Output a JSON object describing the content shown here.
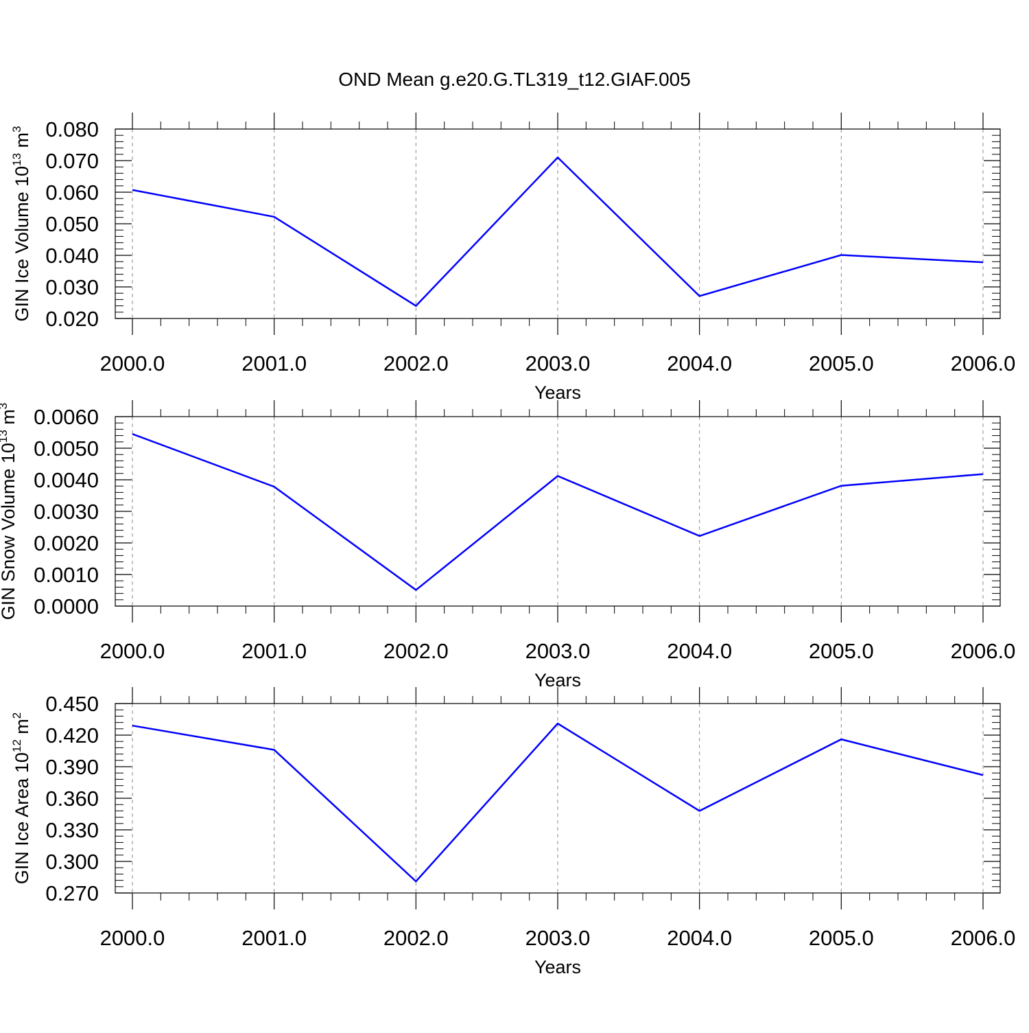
{
  "title": "OND Mean g.e20.G.TL319_t12.GIAF.005",
  "colors": {
    "series": "#0000ff",
    "axis": "#000000",
    "grid": "#888888"
  },
  "chart_data": [
    {
      "type": "line",
      "title": "OND Mean g.e20.G.TL319_t12.GIAF.005",
      "xlabel": "Years",
      "ylabel": {
        "text": "GIN Ice Volume 10",
        "exp": "13",
        "unit": " m",
        "unit_exp": "3"
      },
      "xlim": [
        2000,
        2006
      ],
      "ylim": [
        0.02,
        0.08
      ],
      "x_ticks": [
        2000,
        2001,
        2002,
        2003,
        2004,
        2005,
        2006
      ],
      "x_tick_labels": [
        "2000.0",
        "2001.0",
        "2002.0",
        "2003.0",
        "2004.0",
        "2005.0",
        "2006.0"
      ],
      "y_ticks": [
        0.02,
        0.03,
        0.04,
        0.05,
        0.06,
        0.07,
        0.08
      ],
      "y_tick_labels": [
        "0.020",
        "0.030",
        "0.040",
        "0.050",
        "0.060",
        "0.070",
        "0.080"
      ],
      "grid": "vertical dashed at major x ticks",
      "series": [
        {
          "x": [
            2000,
            2001,
            2002,
            2003,
            2004,
            2005,
            2006
          ],
          "values": [
            0.0607,
            0.0522,
            0.024,
            0.071,
            0.0271,
            0.0401,
            0.0378
          ]
        }
      ]
    },
    {
      "type": "line",
      "xlabel": "Years",
      "ylabel": {
        "text": "GIN Snow Volume 10",
        "exp": "13",
        "unit": " m",
        "unit_exp": "3"
      },
      "xlim": [
        2000,
        2006
      ],
      "ylim": [
        0.0,
        0.006
      ],
      "x_ticks": [
        2000,
        2001,
        2002,
        2003,
        2004,
        2005,
        2006
      ],
      "x_tick_labels": [
        "2000.0",
        "2001.0",
        "2002.0",
        "2003.0",
        "2004.0",
        "2005.0",
        "2006.0"
      ],
      "y_ticks": [
        0.0,
        0.001,
        0.002,
        0.003,
        0.004,
        0.005,
        0.006
      ],
      "y_tick_labels": [
        "0.0000",
        "0.0010",
        "0.0020",
        "0.0030",
        "0.0040",
        "0.0050",
        "0.0060"
      ],
      "grid": "vertical dashed at major x ticks",
      "series": [
        {
          "x": [
            2000,
            2001,
            2002,
            2003,
            2004,
            2005,
            2006
          ],
          "values": [
            0.00545,
            0.00378,
            0.00051,
            0.00412,
            0.00222,
            0.00381,
            0.00418
          ]
        }
      ]
    },
    {
      "type": "line",
      "xlabel": "Years",
      "ylabel": {
        "text": "GIN Ice Area 10",
        "exp": "12",
        "unit": " m",
        "unit_exp": "2"
      },
      "xlim": [
        2000,
        2006
      ],
      "ylim": [
        0.27,
        0.45
      ],
      "x_ticks": [
        2000,
        2001,
        2002,
        2003,
        2004,
        2005,
        2006
      ],
      "x_tick_labels": [
        "2000.0",
        "2001.0",
        "2002.0",
        "2003.0",
        "2004.0",
        "2005.0",
        "2006.0"
      ],
      "y_ticks": [
        0.27,
        0.3,
        0.33,
        0.36,
        0.39,
        0.42,
        0.45
      ],
      "y_tick_labels": [
        "0.270",
        "0.300",
        "0.330",
        "0.360",
        "0.390",
        "0.420",
        "0.450"
      ],
      "grid": "vertical dashed at major x ticks",
      "series": [
        {
          "x": [
            2000,
            2001,
            2002,
            2003,
            2004,
            2005,
            2006
          ],
          "values": [
            0.429,
            0.406,
            0.281,
            0.431,
            0.348,
            0.416,
            0.382
          ]
        }
      ]
    }
  ]
}
